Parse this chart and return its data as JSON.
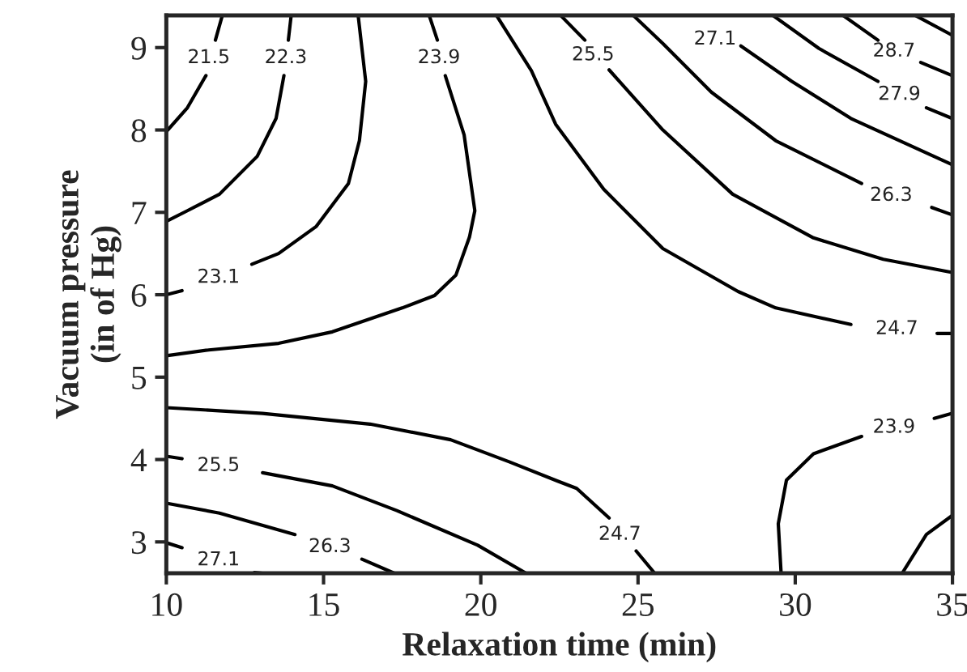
{
  "chart_data": {
    "type": "line",
    "xlabel": "Relaxation time (min)",
    "ylabel": "Vacuum pressure\n(in of Hg)",
    "xlim": [
      10,
      35
    ],
    "ylim": [
      2.62,
      9.39
    ],
    "xticks": [
      10,
      15,
      20,
      25,
      30,
      35
    ],
    "yticks": [
      3,
      4,
      5,
      6,
      7,
      8,
      9
    ],
    "grid": false,
    "marker": "none",
    "line_style": "solid",
    "series": [
      {
        "name": "21.5",
        "color": "#000000",
        "x": [
          11.78,
          11.56,
          11.35,
          11.26,
          10.67,
          10.0
        ],
        "values": [
          9.39,
          9.09,
          null,
          8.66,
          8.27,
          7.98
        ]
      },
      {
        "name": "22.3",
        "color": "#000000",
        "x": [
          13.97,
          13.88,
          13.8,
          13.74,
          13.49,
          12.89,
          11.69,
          10.67,
          10.0
        ],
        "values": [
          9.39,
          9.09,
          null,
          8.66,
          8.14,
          7.68,
          7.22,
          7.02,
          6.89
        ]
      },
      {
        "name": "23.1",
        "color": "#000000",
        "x": [
          16.1,
          16.34,
          16.14,
          15.79,
          14.77,
          13.57,
          12.72,
          11.66,
          10.5,
          10.0
        ],
        "values": [
          9.39,
          8.59,
          7.87,
          7.35,
          6.83,
          6.5,
          6.37,
          null,
          6.05,
          6.0
        ]
      },
      {
        "name": "23.9",
        "color": "#000000",
        "x": [
          18.36,
          18.62,
          18.67,
          18.87,
          19.47,
          19.81,
          19.64,
          19.21,
          18.53,
          17.5,
          15.28,
          13.57,
          11.35,
          10.0
        ],
        "values": [
          9.39,
          9.09,
          null,
          8.66,
          7.94,
          7.02,
          6.7,
          6.24,
          5.99,
          5.84,
          5.55,
          5.41,
          5.33,
          5.26
        ]
      },
      {
        "name": "24.7",
        "color": "#000000",
        "x": [
          20.5,
          21.61,
          22.38,
          23.91,
          25.79,
          28.18,
          29.38,
          31.77,
          33.23,
          34.51,
          35.0
        ],
        "values": [
          9.39,
          8.72,
          8.07,
          7.28,
          6.56,
          6.04,
          5.84,
          5.64,
          null,
          5.53,
          5.53
        ]
      },
      {
        "name": "25.5",
        "color": "#000000",
        "x": [
          22.54,
          23.31,
          23.57,
          24.08,
          25.79,
          28.01,
          30.58,
          32.8,
          34.99
        ],
        "values": [
          9.39,
          9.09,
          null,
          8.73,
          8.0,
          7.22,
          6.69,
          6.43,
          6.27
        ]
      },
      {
        "name": "26.3",
        "color": "#000000",
        "x": [
          24.85,
          25.79,
          27.33,
          29.38,
          32.11,
          33.05,
          34.34,
          34.99
        ],
        "values": [
          9.39,
          9.05,
          8.46,
          7.87,
          7.35,
          null,
          7.06,
          6.97
        ]
      },
      {
        "name": "27.1",
        "color": "#000000",
        "x": [
          28.27,
          29.89,
          31.77,
          34.99
        ],
        "values": [
          9.02,
          8.59,
          8.14,
          7.58
        ]
      },
      {
        "name": "27.9",
        "color": "#000000",
        "x": [
          29.29,
          30.75,
          32.63,
          33.31,
          34.17,
          34.99
        ],
        "values": [
          9.39,
          8.99,
          8.59,
          null,
          8.27,
          8.14
        ]
      },
      {
        "name": "28.7",
        "color": "#000000",
        "x": [
          31.52,
          32.63,
          33.14,
          33.99,
          34.99
        ],
        "values": [
          9.39,
          9.09,
          null,
          8.82,
          8.66
        ]
      },
      {
        "color": "#000000",
        "x": [
          33.82,
          34.99
        ],
        "values": [
          9.39,
          9.15
        ]
      },
      {
        "name": "23.9",
        "color": "#000000",
        "x": [
          29.55,
          29.46,
          29.72,
          30.58,
          32.11,
          33.14,
          34.42,
          34.99
        ],
        "values": [
          2.62,
          3.22,
          3.75,
          4.07,
          4.28,
          null,
          4.5,
          4.56
        ]
      },
      {
        "name": "24.7",
        "color": "#000000",
        "x": [
          10.0,
          13.06,
          16.48,
          19.04,
          20.92,
          22.43,
          23.05,
          24.08,
          24.42,
          24.94,
          25.53
        ],
        "values": [
          4.63,
          4.56,
          4.43,
          4.24,
          3.97,
          3.74,
          3.65,
          3.29,
          null,
          2.89,
          2.62
        ]
      },
      {
        "name": "25.5",
        "color": "#000000",
        "x": [
          10.0,
          10.5,
          11.66,
          13.06,
          15.28,
          17.33,
          19.9,
          21.44
        ],
        "values": [
          4.04,
          4.01,
          null,
          3.84,
          3.68,
          3.38,
          2.96,
          2.62
        ]
      },
      {
        "name": "26.3",
        "color": "#000000",
        "x": [
          10.0,
          11.69,
          14.09,
          15.2,
          16.22,
          17.25
        ],
        "values": [
          3.47,
          3.35,
          3.09,
          null,
          2.79,
          2.62
        ]
      },
      {
        "name": "27.1",
        "color": "#000000",
        "x": [
          10.0,
          10.5,
          11.66,
          12.8,
          13.06
        ],
        "values": [
          2.99,
          2.93,
          null,
          2.63,
          2.62
        ]
      },
      {
        "color": "#000000",
        "x": [
          33.4,
          34.17,
          34.99
        ],
        "values": [
          2.62,
          3.09,
          3.32
        ]
      }
    ]
  }
}
